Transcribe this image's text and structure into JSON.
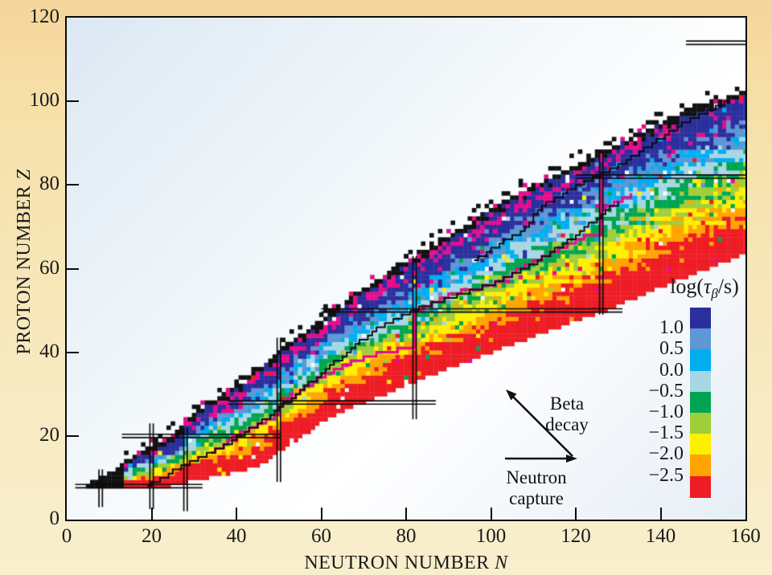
{
  "figure": {
    "description": "Chart of nuclides colored by beta-decay lifetime with r-process path"
  },
  "axes": {
    "x": {
      "title": "NEUTRON NUMBER",
      "title_var": "N",
      "ticks": [
        0,
        20,
        40,
        60,
        80,
        100,
        120,
        140,
        160
      ],
      "range": [
        0,
        160
      ]
    },
    "y": {
      "title": "PROTON NUMBER",
      "title_var": "Z",
      "ticks": [
        0,
        20,
        40,
        60,
        80,
        100,
        120
      ],
      "range": [
        0,
        120
      ]
    }
  },
  "legend": {
    "title_pre": "log(",
    "title_tau": "τ",
    "title_sub": "β",
    "title_post": "/s)",
    "boundary_labels": [
      "1.0",
      "0.5",
      "0.0",
      "−0.5",
      "−1.0",
      "−1.5",
      "−2.0",
      "−2.5"
    ],
    "colors": [
      "#2b2f9d",
      "#5e97d5",
      "#00aef0",
      "#a8d7e4",
      "#00a551",
      "#9fce3b",
      "#ffef00",
      "#ffa400",
      "#ee1c24"
    ]
  },
  "annotations": {
    "beta": {
      "lines": [
        "Beta",
        "decay"
      ]
    },
    "neutron": {
      "lines": [
        "Neutron",
        "capture"
      ]
    }
  },
  "chart_data": {
    "type": "heatmap",
    "title": "",
    "xlabel": "NEUTRON NUMBER N",
    "ylabel": "PROTON NUMBER Z",
    "xlim": [
      0,
      160
    ],
    "ylim": [
      0,
      120
    ],
    "value_label": "log(τβ/s)",
    "value_bins_top_to_bottom": [
      ">1.0",
      "0.5–1.0",
      "0.0–0.5",
      "−0.5–0.0",
      "−1.0–−0.5",
      "−1.5–−1.0",
      "−2.0–−1.5",
      "−2.5–−2.0",
      "<−2.5"
    ],
    "bin_colors": [
      "#2b2f9d",
      "#5e97d5",
      "#00aef0",
      "#a8d7e4",
      "#00a551",
      "#9fce3b",
      "#ffef00",
      "#ffa400",
      "#ee1c24"
    ],
    "special_colors": {
      "stable_edge_black": "#111111",
      "scatter_magenta": "#e60c8c"
    },
    "band": {
      "top_edge_NZ": [
        [
          5,
          8
        ],
        [
          12,
          12
        ],
        [
          17,
          16
        ],
        [
          24,
          19
        ],
        [
          30,
          25
        ],
        [
          36,
          29
        ],
        [
          42,
          33
        ],
        [
          48,
          38
        ],
        [
          54,
          43
        ],
        [
          60,
          47
        ],
        [
          66,
          52
        ],
        [
          72,
          56
        ],
        [
          80,
          61
        ],
        [
          88,
          66
        ],
        [
          96,
          71
        ],
        [
          104,
          76
        ],
        [
          112,
          80
        ],
        [
          120,
          84
        ],
        [
          128,
          88
        ],
        [
          136,
          92
        ],
        [
          146,
          97
        ],
        [
          154,
          100
        ],
        [
          160,
          102
        ]
      ],
      "bottom_edge_NZ": [
        [
          5,
          8
        ],
        [
          22,
          8
        ],
        [
          45,
          13
        ],
        [
          62,
          25
        ],
        [
          86,
          35
        ],
        [
          112,
          45
        ],
        [
          126,
          50
        ],
        [
          140,
          56
        ],
        [
          160,
          64
        ]
      ],
      "band_fractions_cumulative": [
        0.21,
        0.28,
        0.35,
        0.44,
        0.53,
        0.61,
        0.7,
        0.8,
        1.0
      ]
    },
    "magic_number_lines": [
      {
        "axis": "N",
        "value": 8,
        "span": [
          3,
          12
        ]
      },
      {
        "axis": "N",
        "value": 20,
        "span": [
          2.5,
          23
        ]
      },
      {
        "axis": "N",
        "value": 28,
        "span": [
          2,
          22
        ]
      },
      {
        "axis": "N",
        "value": 50,
        "span": [
          9,
          43.5
        ]
      },
      {
        "axis": "N",
        "value": 82,
        "span": [
          24,
          63
        ]
      },
      {
        "axis": "N",
        "value": 126,
        "span": [
          49,
          88
        ]
      },
      {
        "axis": "Z",
        "value": 8,
        "span": [
          2,
          32
        ]
      },
      {
        "axis": "Z",
        "value": 20,
        "span": [
          13,
          50.5
        ]
      },
      {
        "axis": "Z",
        "value": 28,
        "span": [
          38,
          87
        ]
      },
      {
        "axis": "Z",
        "value": 50,
        "span": [
          60,
          131
        ]
      },
      {
        "axis": "Z",
        "value": 82,
        "span": [
          120,
          160
        ]
      },
      {
        "axis": "Z",
        "value": 114,
        "span": [
          146,
          160
        ]
      }
    ],
    "known_nuclei_border_NZ": [
      [
        19,
        8
      ],
      [
        24,
        11
      ],
      [
        30,
        14
      ],
      [
        36,
        17
      ],
      [
        42,
        21
      ],
      [
        48,
        25
      ],
      [
        54,
        30
      ],
      [
        60,
        35
      ],
      [
        66,
        40
      ],
      [
        72,
        45
      ],
      [
        78,
        48
      ],
      [
        84,
        51
      ],
      [
        90,
        53
      ],
      [
        96,
        55
      ],
      [
        102,
        57
      ],
      [
        108,
        60
      ],
      [
        114,
        64
      ],
      [
        120,
        68
      ],
      [
        126,
        73
      ],
      [
        130,
        76
      ]
    ],
    "upper_border_NZ": [
      [
        96,
        62
      ],
      [
        102,
        66
      ],
      [
        107,
        69
      ],
      [
        112,
        75
      ],
      [
        117,
        78
      ],
      [
        122,
        81
      ],
      [
        127,
        83
      ],
      [
        132,
        86
      ],
      [
        138,
        90
      ],
      [
        144,
        94
      ],
      [
        150,
        97
      ],
      [
        156,
        100
      ]
    ],
    "r_process_path_NZ": [
      [
        34,
        16
      ],
      [
        41,
        21
      ],
      [
        46,
        23
      ],
      [
        50,
        25
      ],
      [
        50,
        27
      ],
      [
        54,
        30
      ],
      [
        58,
        33
      ],
      [
        63,
        36
      ],
      [
        68,
        38
      ],
      [
        74,
        40
      ],
      [
        82,
        41
      ],
      [
        82,
        50
      ],
      [
        85,
        51
      ],
      [
        90,
        54
      ],
      [
        96,
        55
      ],
      [
        102,
        57
      ],
      [
        108,
        61
      ],
      [
        113,
        63
      ],
      [
        118,
        66
      ],
      [
        123,
        68
      ],
      [
        126,
        68
      ],
      [
        126,
        83
      ]
    ],
    "r_process_path_branch_NZ": [
      [
        126,
        74
      ],
      [
        130,
        76
      ],
      [
        133,
        78
      ]
    ],
    "path_color": "#e60c8c"
  }
}
